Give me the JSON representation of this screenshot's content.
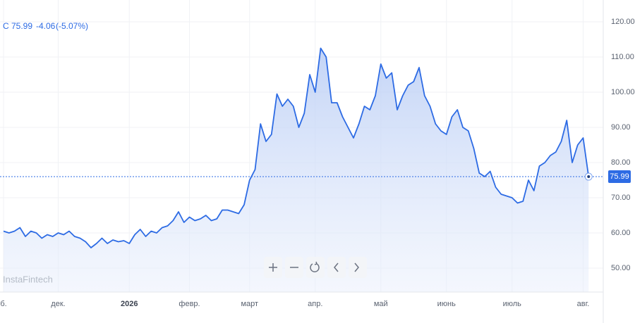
{
  "chart_data": {
    "type": "line",
    "legend": {
      "symbol": "C",
      "close": 75.99,
      "change": -4.06,
      "change_pct": "(-5.07%)"
    },
    "watermark": "InstaFintech",
    "categories": [
      "б.",
      null,
      null,
      null,
      null,
      null,
      null,
      null,
      null,
      null,
      "дек.",
      null,
      null,
      null,
      null,
      null,
      null,
      null,
      null,
      null,
      null,
      null,
      null,
      "2026",
      null,
      null,
      null,
      null,
      null,
      null,
      null,
      null,
      null,
      null,
      "февр.",
      null,
      null,
      null,
      null,
      null,
      null,
      null,
      null,
      null,
      null,
      "март",
      null,
      null,
      null,
      null,
      null,
      null,
      null,
      null,
      null,
      null,
      null,
      "апр.",
      null,
      null,
      null,
      null,
      null,
      null,
      null,
      null,
      null,
      null,
      null,
      "май",
      null,
      null,
      null,
      null,
      null,
      null,
      null,
      null,
      null,
      null,
      null,
      "июнь",
      null,
      null,
      null,
      null,
      null,
      null,
      null,
      null,
      null,
      null,
      null,
      "июль",
      null,
      null,
      null,
      null,
      null,
      null,
      null,
      null,
      null,
      null,
      null,
      null,
      "авг.",
      null
    ],
    "series": [
      {
        "name": "C",
        "color": "#2d6be4",
        "values": [
          60.5,
          60,
          60.5,
          61.5,
          59,
          60.5,
          60,
          58.5,
          59.5,
          59,
          60,
          59.5,
          60.5,
          59,
          58.5,
          57.5,
          55.8,
          57,
          58.5,
          57,
          58,
          57.5,
          57.8,
          57,
          59.5,
          61,
          59,
          60.5,
          60,
          61.5,
          62,
          63.5,
          66,
          63,
          64.5,
          63.5,
          64,
          65,
          63.5,
          64,
          66.5,
          66.5,
          66,
          65.5,
          68,
          75,
          78,
          91,
          86,
          88,
          99.5,
          96,
          98,
          96,
          90,
          94,
          105,
          100,
          112.5,
          110,
          97,
          97,
          93,
          90,
          87,
          91,
          96,
          95,
          99,
          108,
          104,
          105.5,
          95,
          99,
          102,
          103,
          107,
          99,
          96,
          91,
          89,
          88,
          93,
          95,
          90,
          89,
          84,
          77,
          76,
          77.5,
          73,
          71,
          70.5,
          70,
          68.5,
          69,
          75,
          72,
          79,
          80,
          82,
          83,
          86,
          92,
          80,
          85,
          87,
          75.99
        ]
      }
    ],
    "ylim": [
      43.2,
      126.2
    ],
    "yticks": [
      {
        "value": 50,
        "label": "50.00"
      },
      {
        "value": 60,
        "label": "60.00"
      },
      {
        "value": 70,
        "label": "70.00"
      },
      {
        "value": 80,
        "label": "80.00"
      },
      {
        "value": 90,
        "label": "90.00"
      },
      {
        "value": 100,
        "label": "100.00"
      },
      {
        "value": 110,
        "label": "110.00"
      },
      {
        "value": 120,
        "label": "120.00"
      }
    ],
    "grid": true
  }
}
